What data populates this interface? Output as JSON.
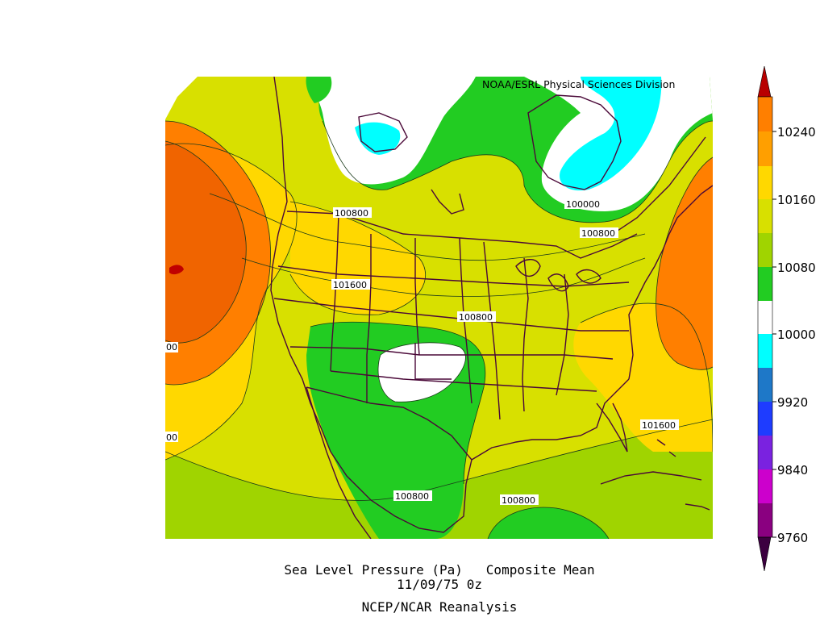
{
  "credit": "NOAA/ESRL Physical Sciences Division",
  "caption": {
    "line1": "Sea Level Pressure (Pa)   Composite Mean",
    "line2": "11/09/75 0z",
    "line3": "NCEP/NCAR Reanalysis"
  },
  "contour_labels": [
    {
      "id": "c1",
      "text": "100800"
    },
    {
      "id": "c2",
      "text": "100000"
    },
    {
      "id": "c3",
      "text": "100800"
    },
    {
      "id": "c4",
      "text": "101600"
    },
    {
      "id": "c5",
      "text": "100800"
    },
    {
      "id": "c6",
      "text": "101600"
    },
    {
      "id": "c7",
      "text": "100800"
    },
    {
      "id": "c8",
      "text": "100800"
    },
    {
      "id": "c9",
      "text": "00"
    },
    {
      "id": "c10",
      "text": "00"
    }
  ],
  "colorbar": {
    "labels": [
      "10240",
      "10160",
      "10080",
      "10000",
      "9920",
      "9840",
      "9760"
    ],
    "colors": [
      "#8b0000",
      "#ff7f00",
      "#ffd800",
      "#d8e000",
      "#a0d400",
      "#22cc22",
      "#ffffff",
      "#00ffff",
      "#1e78c8",
      "#1e3cff",
      "#7a22e0",
      "#cc00cc",
      "#8a0080",
      "#3c0040"
    ]
  },
  "palette": {
    "orange_high": "#ff7f00",
    "yellow": "#ffd800",
    "yellow_green": "#d8e000",
    "light_green": "#a0d400",
    "green": "#22cc22",
    "white": "#ffffff",
    "cyan": "#00ffff",
    "dark_red": "#c00000",
    "borders": "#4a0838"
  }
}
